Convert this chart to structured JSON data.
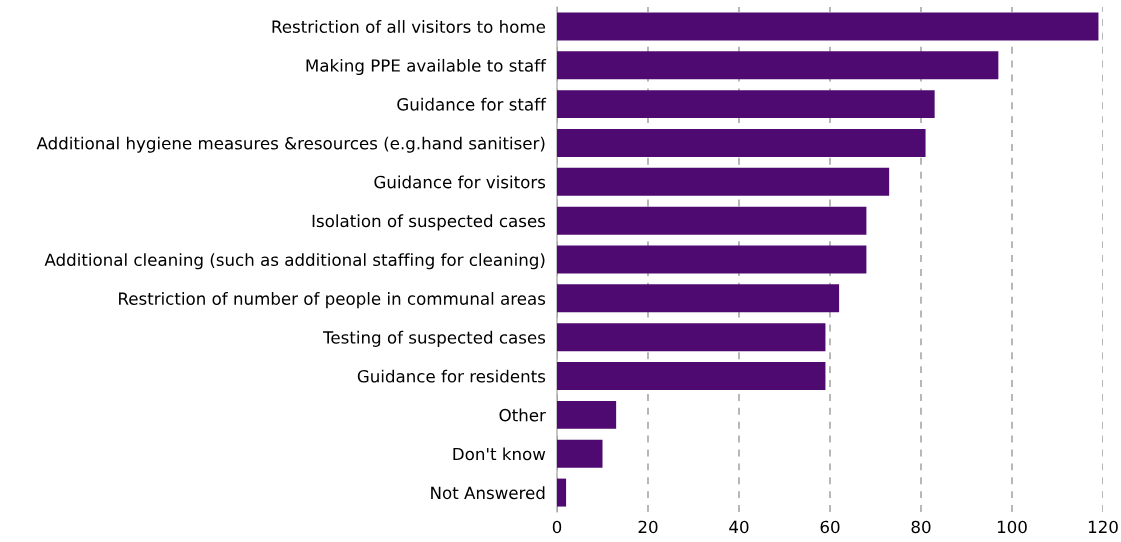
{
  "chart_data": {
    "type": "bar",
    "orientation": "horizontal",
    "categories": [
      "Restriction of all visitors to home",
      "Making PPE available to staff",
      "Guidance for staff",
      "Additional hygiene measures &resources (e.g.hand sanitiser)",
      "Guidance for visitors",
      "Isolation of suspected cases",
      "Additional cleaning (such as additional staffing for cleaning)",
      "Restriction of number of people in communal areas",
      "Testing of suspected cases",
      "Guidance for residents",
      "Other",
      "Don't know",
      "Not Answered"
    ],
    "values": [
      119,
      97,
      83,
      81,
      73,
      68,
      68,
      62,
      59,
      59,
      13,
      10,
      2
    ],
    "color": "#4f0a71",
    "xlim": [
      0,
      120
    ],
    "xticks": [
      0,
      20,
      40,
      60,
      80,
      100,
      120
    ],
    "grid": "x"
  }
}
